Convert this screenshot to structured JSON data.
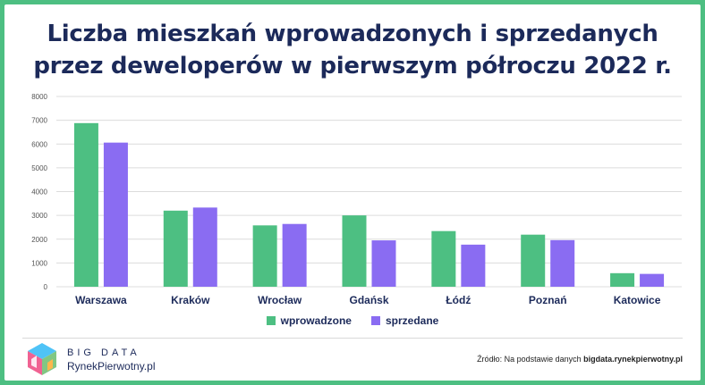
{
  "title_line1": "Liczba mieszkań wprowadzonych i sprzedanych",
  "title_line2": "przez deweloperów w pierwszym półroczu 2022 r.",
  "chart_data": {
    "type": "bar",
    "categories": [
      "Warszawa",
      "Kraków",
      "Wrocław",
      "Gdańsk",
      "Łódź",
      "Poznań",
      "Katowice"
    ],
    "series": [
      {
        "name": "wprowadzone",
        "color": "#4dbf82",
        "values": [
          6880,
          3200,
          2580,
          3000,
          2340,
          2190,
          570
        ]
      },
      {
        "name": "sprzedane",
        "color": "#8a6cf2",
        "values": [
          6060,
          3330,
          2640,
          1950,
          1770,
          1960,
          540
        ]
      }
    ],
    "ylim": [
      0,
      8000
    ],
    "yticks": [
      "0",
      "1000",
      "2000",
      "3000",
      "4000",
      "5000",
      "6000",
      "7000",
      "8000"
    ],
    "grid": true,
    "legend_position": "bottom"
  },
  "footer": {
    "brand_line1": "BIG DATA",
    "brand_line2": "RynekPierwotny.pl",
    "source_prefix": "Źródło: Na podstawie danych ",
    "source_bold": "bigdata.rynekpierwotny.pl"
  },
  "colors": {
    "frame": "#4dbf82",
    "title": "#1c2a5a",
    "logo_accent_1": "#f06292",
    "logo_accent_2": "#4fc3f7",
    "logo_accent_3": "#81c784",
    "logo_accent_4": "#ffb74d"
  }
}
